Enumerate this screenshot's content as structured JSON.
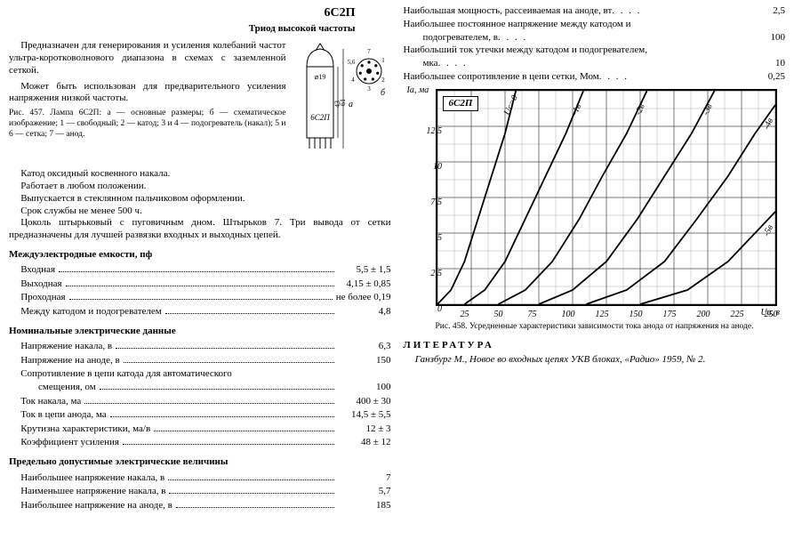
{
  "model": "6С2П",
  "subtitle": "Триод высокой частоты",
  "intro": {
    "p1": "Предназначен для генерирования и усиления колебаний частот ультра-коротковолнового диапазона в схемах с заземленной сеткой.",
    "p2": "Может быть использован для предварительного усиления напряжения низкой частоты."
  },
  "tube": {
    "label": "6С2П",
    "dia": "⌀19",
    "h1": "43",
    "h2": "61",
    "diag_a": "а",
    "diag_b": "б",
    "pins": [
      "1",
      "2",
      "3",
      "4",
      "5,6",
      "7"
    ]
  },
  "fig457": "Рис. 457. Лампа 6С2П: а — основные размеры; б — схематическое изображение; 1 — свободный; 2 — катод; 3 и 4 — подогреватель (накал); 5 и 6 — сетка; 7 — анод.",
  "desc": {
    "p1": "Катод оксидный косвенного накала.",
    "p2": "Работает в любом положении.",
    "p3": "Выпускается в стеклянном пальчиковом оформлении.",
    "p4": "Срок службы не менее 500 ч.",
    "p5": "Цоколь штырьковый с пуговичным дном. Штырьков 7. Три вывода от сетки предназначены для лучшей развязки входных и выходных цепей."
  },
  "cap_h": "Междуэлектродные емкости, пф",
  "cap": [
    {
      "l": "Входная",
      "v": "5,5 ± 1,5"
    },
    {
      "l": "Выходная",
      "v": "4,15 ± 0,85"
    },
    {
      "l": "Проходная",
      "pre": "не более",
      "v": "0,19"
    },
    {
      "l": "Между катодом и подогревателем",
      "v": "4,8"
    }
  ],
  "nom_h": "Номинальные электрические данные",
  "nom": [
    {
      "l": "Напряжение накала, в",
      "v": "6,3"
    },
    {
      "l": "Напряжение на аноде, в",
      "v": "150"
    },
    {
      "l": "Сопротивление в цепи катода для автоматического",
      "v": ""
    },
    {
      "l": "смещения, ом",
      "v": "100",
      "cont": true
    },
    {
      "l": "Ток накала, ма",
      "v": "400 ± 30"
    },
    {
      "l": "Ток в цепи анода, ма",
      "v": "14,5 ± 5,5"
    },
    {
      "l": "Крутизна характеристики, ма/в",
      "v": "12 ± 3"
    },
    {
      "l": "Коэффициент усиления",
      "v": "48 ± 12"
    }
  ],
  "lim_h": "Предельно допустимые электрические величины",
  "lim": [
    {
      "l": "Наибольшее напряжение накала, в",
      "v": "7"
    },
    {
      "l": "Наименьшее напряжение накала, в",
      "v": "5,7"
    },
    {
      "l": "Наибольшее напряжение на аноде, в",
      "v": "185"
    }
  ],
  "max": [
    {
      "l": "Наибольшая мощность, рассеиваемая на аноде, вт",
      "v": "2,5"
    },
    {
      "l": "Наибольшее постоянное напряжение между катодом и",
      "v": ""
    },
    {
      "l": "подогревателем, в",
      "v": "100",
      "cont": true
    },
    {
      "l": "Наибольший ток утечки между катодом и подогревателем,",
      "v": ""
    },
    {
      "l": "мка",
      "v": "10",
      "cont": true
    },
    {
      "l": "Наибольшее сопротивление в цепи сетки, Мом",
      "v": "0,25"
    }
  ],
  "chart": {
    "name": "6С2П",
    "y_unit": "Iа, ма",
    "x_unit": "Uа, в",
    "y_ticks": [
      0,
      2.5,
      5,
      7.5,
      10,
      12.5
    ],
    "y_labels": [
      "0",
      "2,5",
      "5",
      "7,5",
      "10",
      "12,5"
    ],
    "ymax": 15,
    "x_ticks": [
      0,
      25,
      50,
      75,
      100,
      125,
      150,
      175,
      200,
      225,
      250
    ],
    "xmax": 250,
    "curves": [
      {
        "label": "Uс=0",
        "pts": [
          [
            0,
            0
          ],
          [
            10,
            1
          ],
          [
            20,
            3
          ],
          [
            30,
            6
          ],
          [
            40,
            9
          ],
          [
            50,
            12
          ],
          [
            58,
            15
          ]
        ]
      },
      {
        "label": "-1в",
        "pts": [
          [
            20,
            0
          ],
          [
            35,
            1
          ],
          [
            50,
            3
          ],
          [
            65,
            6
          ],
          [
            80,
            9
          ],
          [
            95,
            12
          ],
          [
            108,
            15
          ]
        ]
      },
      {
        "label": "-2в",
        "pts": [
          [
            45,
            0
          ],
          [
            65,
            1
          ],
          [
            85,
            3
          ],
          [
            105,
            6
          ],
          [
            122,
            9
          ],
          [
            140,
            12
          ],
          [
            155,
            15
          ]
        ]
      },
      {
        "label": "-3в",
        "pts": [
          [
            75,
            0
          ],
          [
            100,
            1
          ],
          [
            125,
            3
          ],
          [
            148,
            6
          ],
          [
            168,
            9
          ],
          [
            188,
            12
          ],
          [
            205,
            15
          ]
        ]
      },
      {
        "label": "-4в",
        "pts": [
          [
            110,
            0
          ],
          [
            140,
            1
          ],
          [
            168,
            3
          ],
          [
            192,
            6
          ],
          [
            215,
            9
          ],
          [
            235,
            12
          ],
          [
            250,
            14
          ]
        ]
      },
      {
        "label": "-5в",
        "pts": [
          [
            150,
            0
          ],
          [
            185,
            1
          ],
          [
            215,
            3
          ],
          [
            240,
            5.5
          ],
          [
            250,
            6.5
          ]
        ]
      }
    ],
    "grid_color": "#000",
    "bg": "#fff",
    "line_w": 1.8
  },
  "fig458": "Рис. 458. Усредненные характеристики зависимости тока анода от напряжения на аноде.",
  "lit_h": "ЛИТЕРАТУРА",
  "lit": "Ганзбург М., Новое во входных цепях УКВ блоках, «Радио» 1959, № 2."
}
